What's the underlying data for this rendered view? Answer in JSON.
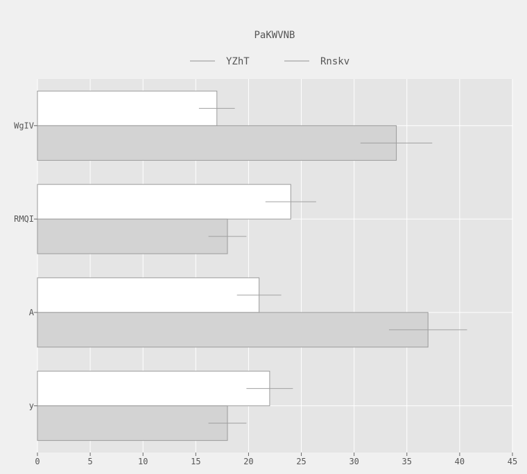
{
  "chart_data": {
    "type": "bar",
    "orientation": "horizontal",
    "title": "PaKWVNB",
    "xlabel": "",
    "ylabel": "",
    "xlim": [
      0,
      45
    ],
    "xticks": [
      0,
      5,
      10,
      15,
      20,
      25,
      30,
      35,
      40,
      45
    ],
    "categories": [
      "WgIV",
      "RMQI",
      "A",
      "y"
    ],
    "series": [
      {
        "name": "YZhT",
        "color": "#ffffff",
        "values": [
          17,
          24,
          21,
          22
        ],
        "errors": [
          1.7,
          2.4,
          2.1,
          2.2
        ]
      },
      {
        "name": "Rnskv",
        "color": "#d3d3d3",
        "values": [
          34,
          18,
          37,
          18
        ],
        "errors": [
          3.4,
          1.8,
          3.7,
          1.8
        ]
      }
    ],
    "grid": true,
    "legend_position": "top-center",
    "plot_background": "#e5e5e5",
    "page_background": "#f0f0f0"
  }
}
